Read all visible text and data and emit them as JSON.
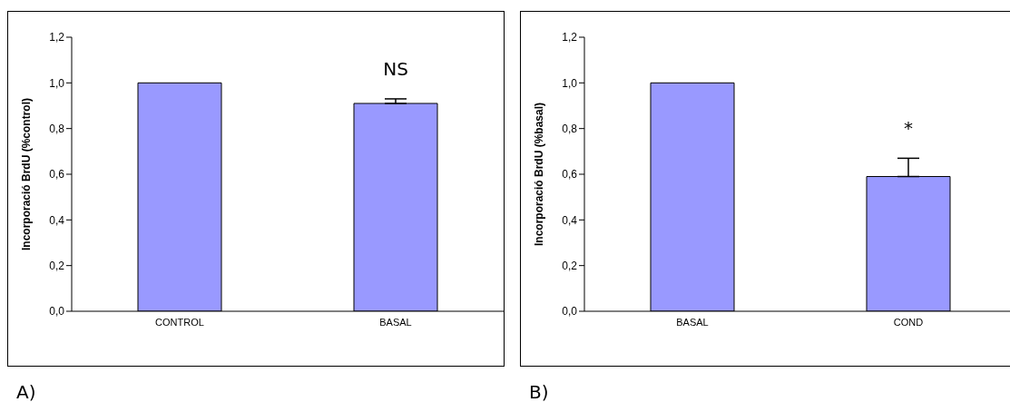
{
  "chart_data": [
    {
      "type": "bar",
      "categories": [
        "CONTROL",
        "BASAL"
      ],
      "values": [
        1.0,
        0.91
      ],
      "color": "#9999ff",
      "errors": [
        null,
        [
          0.91,
          0.93
        ]
      ],
      "ylabel": "Incorporació BrdU (%control)",
      "ylim": [
        0,
        1.2
      ],
      "yticks": [
        {
          "value": 0,
          "label": "0,0"
        },
        {
          "value": 0.2,
          "label": "0,2"
        },
        {
          "value": 0.4,
          "label": "0,4"
        },
        {
          "value": 0.6,
          "label": "0,6"
        },
        {
          "value": 0.8,
          "label": "0,8"
        },
        {
          "value": 1.0,
          "label": "1,0"
        },
        {
          "value": 1.2,
          "label": "1,2"
        }
      ],
      "annotations": [
        "NS",
        "A)"
      ]
    },
    {
      "type": "bar",
      "categories": [
        "BASAL",
        "COND"
      ],
      "values": [
        1.0,
        0.59
      ],
      "color": "#9999ff",
      "errors": [
        null,
        [
          0.59,
          0.67
        ]
      ],
      "ylabel": "Incorporació BrdU (%basal)",
      "ylim": [
        0,
        1.2
      ],
      "yticks": [
        {
          "value": 0,
          "label": "0,0"
        },
        {
          "value": 0.2,
          "label": "0,2"
        },
        {
          "value": 0.4,
          "label": "0,4"
        },
        {
          "value": 0.6,
          "label": "0,6"
        },
        {
          "value": 0.8,
          "label": "0,8"
        },
        {
          "value": 1.0,
          "label": "1,0"
        },
        {
          "value": 1.2,
          "label": "1,2"
        }
      ],
      "annotations": [
        "*",
        "B)"
      ]
    }
  ]
}
